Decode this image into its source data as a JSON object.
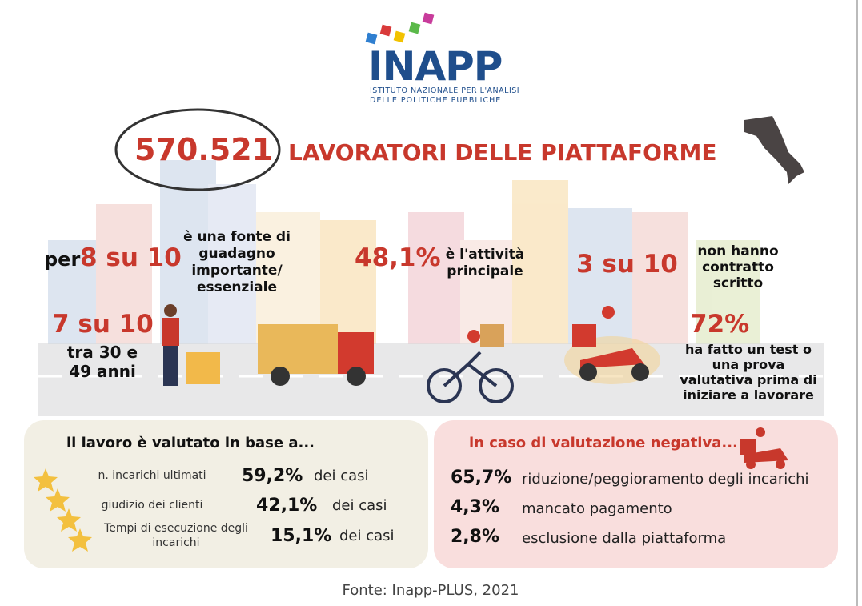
{
  "logo": {
    "name": "INAPP",
    "subtitle": [
      "ISTITUTO NAZIONALE PER L'ANALISI",
      "DELLE POLITICHE PUBBLICHE"
    ]
  },
  "headline": {
    "number": "570.521",
    "text": "LAVORATORI DELLE PIATTAFORME"
  },
  "stats": {
    "income": {
      "prefix": "per",
      "value": "8 su 10",
      "lines": [
        "è una fonte di",
        "guadagno",
        "importante/",
        "essenziale"
      ]
    },
    "age": {
      "value": "7 su 10",
      "lines": [
        "tra 30 e",
        "49 anni"
      ]
    },
    "main": {
      "value": "48,1%",
      "lines": [
        "è l'attività",
        "principale"
      ]
    },
    "contract": {
      "value": "3 su 10",
      "lines": [
        "non hanno",
        "contratto",
        "scritto"
      ]
    },
    "test": {
      "value": "72%",
      "lines": [
        "ha fatto un test o",
        "una prova",
        "valutativa prima di",
        "iniziare a lavorare"
      ]
    }
  },
  "evaluation": {
    "title": "il lavoro è valutato in base a...",
    "rows": [
      {
        "label": [
          "n. incarichi ultimati"
        ],
        "value": "59,2%",
        "suffix": "dei casi"
      },
      {
        "label": [
          "giudizio dei clienti"
        ],
        "value": "42,1%",
        "suffix": "dei casi"
      },
      {
        "label": [
          "Tempi di esecuzione degli",
          "incarichi"
        ],
        "value": "15,1%",
        "suffix": "dei casi"
      }
    ]
  },
  "negative": {
    "title": "in caso di valutazione negativa...",
    "rows": [
      {
        "value": "65,7%",
        "label": "riduzione/peggioramento degli incarichi"
      },
      {
        "value": "4,3%",
        "label": "mancato pagamento"
      },
      {
        "value": "2,8%",
        "label": "esclusione dalla piattaforma"
      }
    ]
  },
  "source": "Fonte: Inapp-PLUS, 2021"
}
